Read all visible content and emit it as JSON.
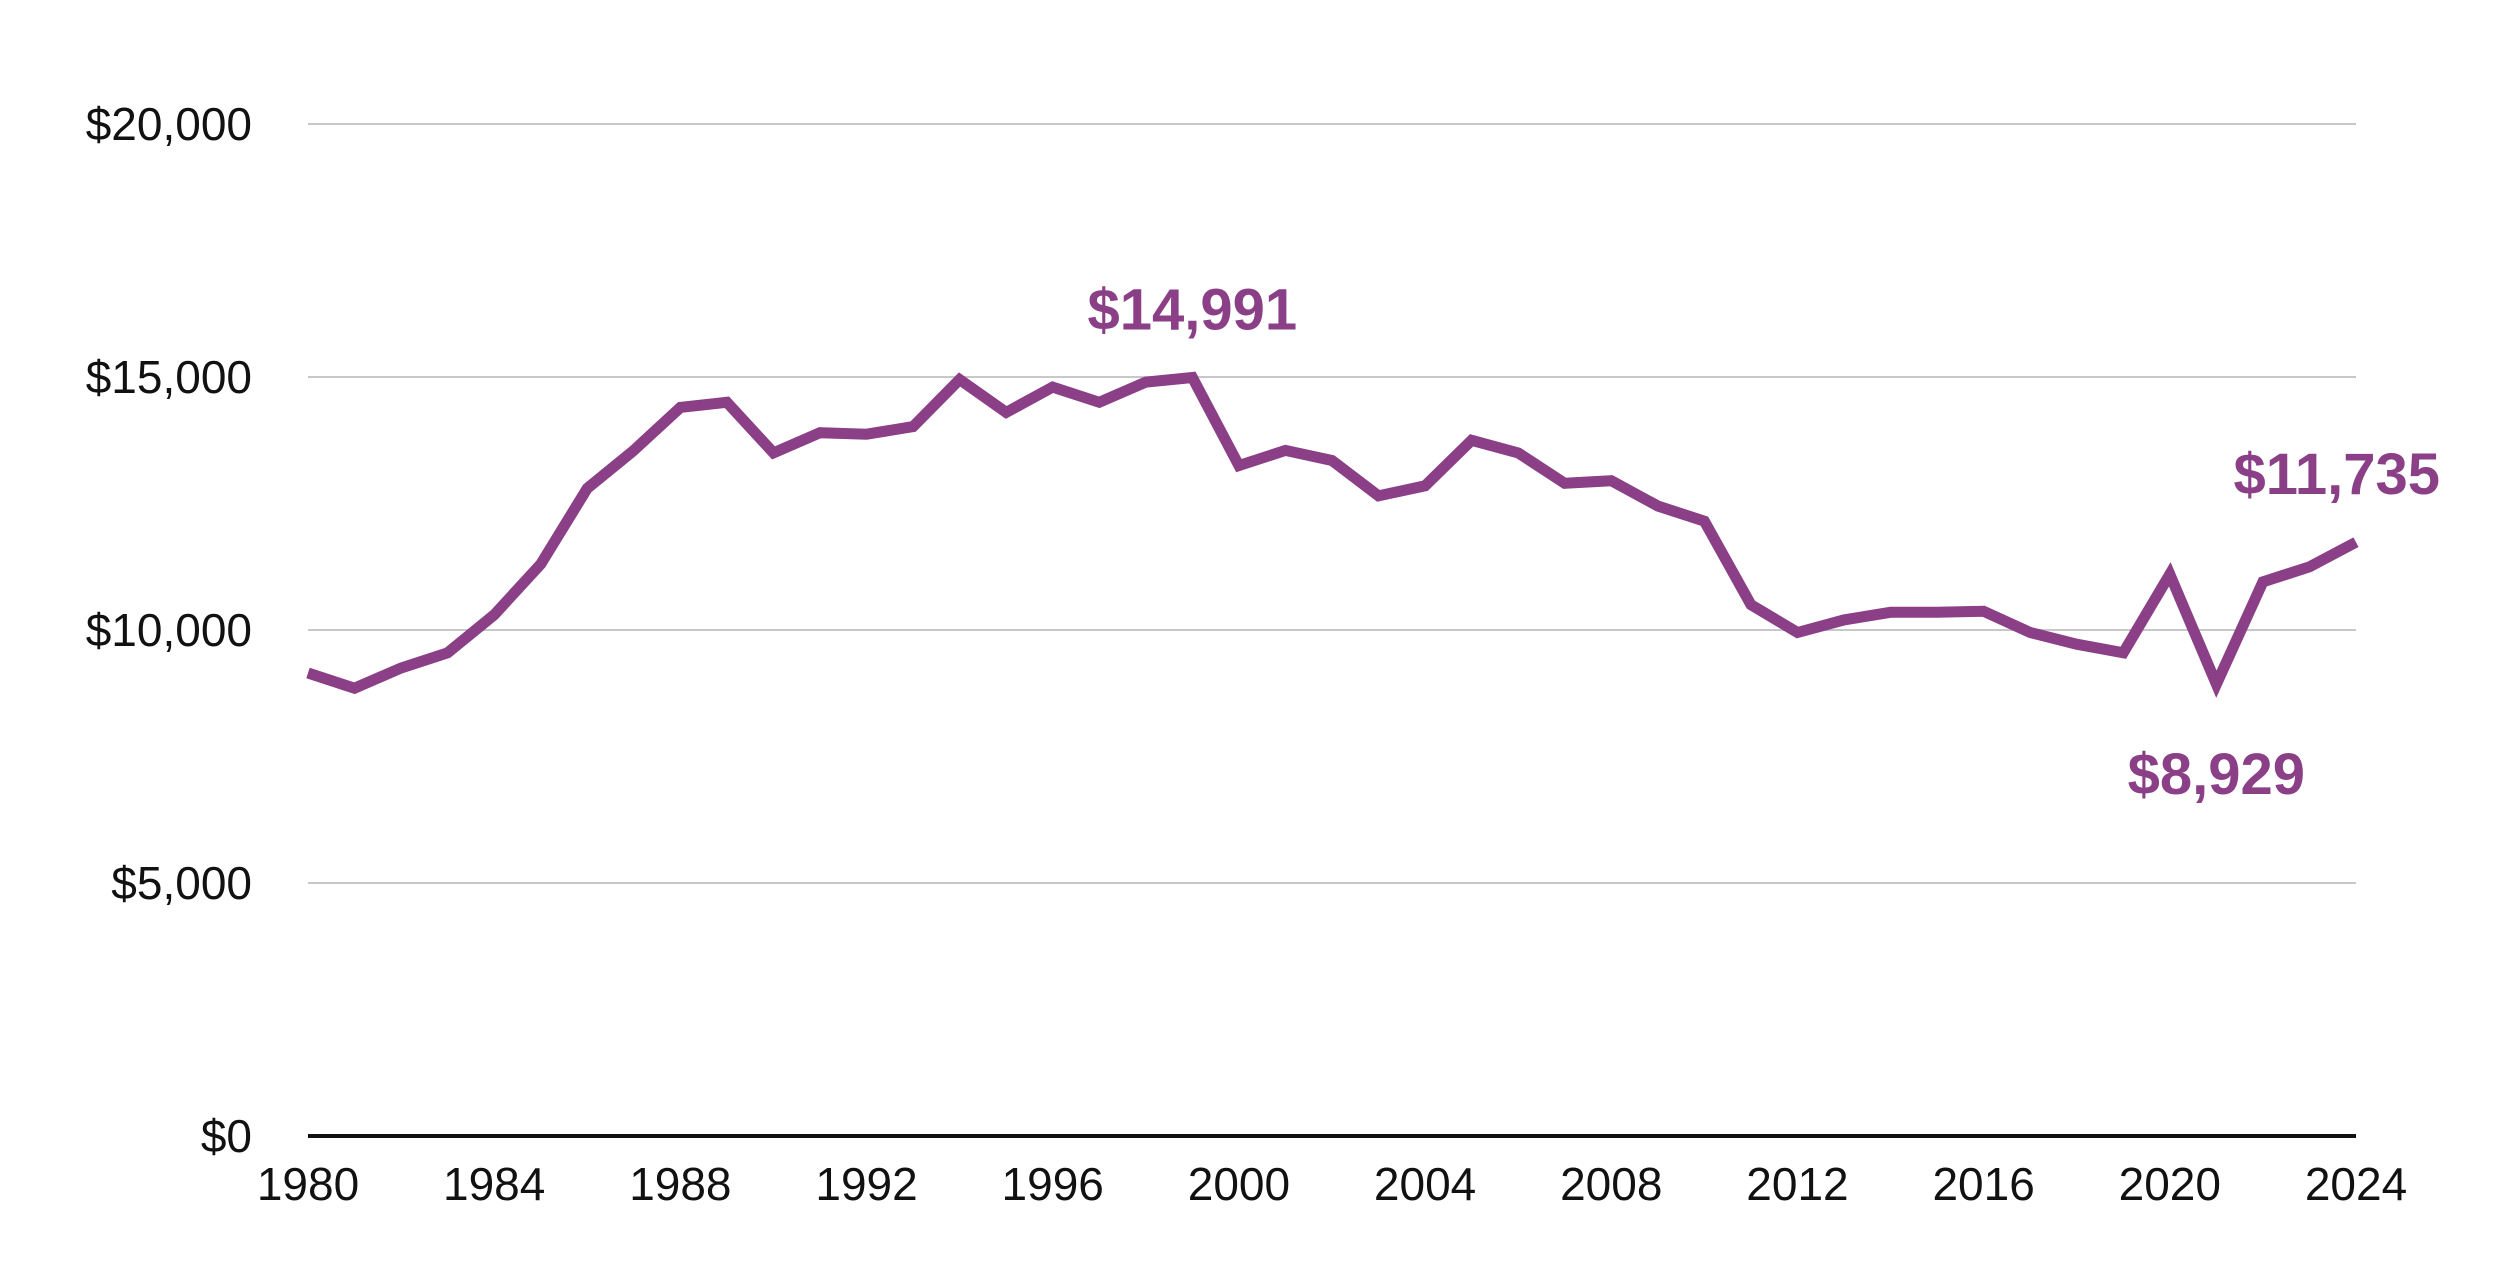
{
  "chart_data": {
    "type": "line",
    "title": "",
    "xlabel": "",
    "ylabel": "",
    "xlim": [
      1980,
      2024
    ],
    "ylim": [
      0,
      20000
    ],
    "grid": true,
    "legend": "none",
    "x_ticks": [
      1980,
      1984,
      1988,
      1992,
      1996,
      2000,
      2004,
      2008,
      2012,
      2016,
      2020,
      2024
    ],
    "x_tick_labels": [
      "1980",
      "1984",
      "1988",
      "1992",
      "1996",
      "2000",
      "2004",
      "2008",
      "2012",
      "2016",
      "2020",
      "2024"
    ],
    "y_ticks": [
      0,
      5000,
      10000,
      15000,
      20000
    ],
    "y_tick_labels": [
      "$0",
      "$5,000",
      "$10,000",
      "$15,000",
      "$20,000"
    ],
    "series": [
      {
        "color": "#8a3f86",
        "x": [
          1980,
          1981,
          1982,
          1983,
          1984,
          1985,
          1986,
          1987,
          1988,
          1989,
          1990,
          1991,
          1992,
          1993,
          1994,
          1995,
          1996,
          1997,
          1998,
          1999,
          2000,
          2001,
          2002,
          2003,
          2004,
          2005,
          2006,
          2007,
          2008,
          2009,
          2010,
          2011,
          2012,
          2013,
          2014,
          2015,
          2016,
          2017,
          2018,
          2019,
          2020,
          2021,
          2022,
          2023,
          2024
        ],
        "values": [
          9150,
          8850,
          9250,
          9550,
          10300,
          11300,
          12800,
          13550,
          14400,
          14500,
          13500,
          13900,
          13870,
          14020,
          14950,
          14300,
          14800,
          14500,
          14900,
          14991,
          13250,
          13550,
          13350,
          12650,
          12850,
          13750,
          13500,
          12900,
          12950,
          12450,
          12150,
          10500,
          9950,
          10200,
          10350,
          10350,
          10370,
          9950,
          9720,
          9550,
          11100,
          8929,
          10950,
          11250,
          11735
        ]
      }
    ],
    "annotations": [
      {
        "x": 1999,
        "y": 14991,
        "text": "$14,991",
        "position": "above"
      },
      {
        "x": 2021,
        "y": 8929,
        "text": "$8,929",
        "position": "below"
      },
      {
        "x": 2024,
        "y": 11735,
        "text": "$11,735",
        "position": "above"
      }
    ]
  }
}
